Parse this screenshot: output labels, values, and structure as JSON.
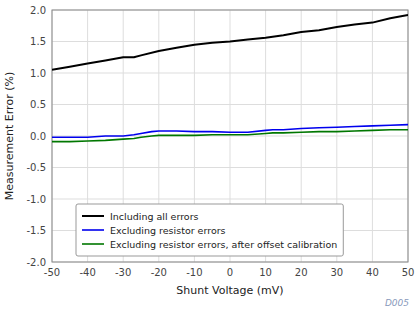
{
  "chart_data": {
    "type": "line",
    "x_label": "Shunt Voltage (mV)",
    "y_label": "Measurement Error (%)",
    "xlim": [
      -50,
      50
    ],
    "ylim": [
      -2,
      2
    ],
    "xticks": [
      -50,
      -40,
      -30,
      -20,
      -10,
      0,
      10,
      20,
      30,
      40,
      50
    ],
    "yticks": [
      {
        "value": -2,
        "label": "-2.0"
      },
      {
        "value": -1.5,
        "label": "-1.5"
      },
      {
        "value": -1,
        "label": "-1.0"
      },
      {
        "value": -0.5,
        "label": "-0.5"
      },
      {
        "value": 0,
        "label": "0.0"
      },
      {
        "value": 0.5,
        "label": "0.5"
      },
      {
        "value": 1,
        "label": "1.0"
      },
      {
        "value": 1.5,
        "label": "1.5"
      },
      {
        "value": 2,
        "label": "2.0"
      }
    ],
    "grid": true,
    "legend": "lower left",
    "annotations": [
      "D005"
    ],
    "series": [
      {
        "name": "Including all errors",
        "color": "#000000",
        "x": [
          -50,
          -45,
          -40,
          -35,
          -30,
          -27,
          -25,
          -20,
          -15,
          -10,
          -5,
          0,
          5,
          10,
          15,
          20,
          25,
          30,
          35,
          40,
          45,
          50
        ],
        "values": [
          1.05,
          1.1,
          1.15,
          1.2,
          1.25,
          1.25,
          1.28,
          1.35,
          1.4,
          1.45,
          1.48,
          1.5,
          1.53,
          1.56,
          1.6,
          1.65,
          1.68,
          1.73,
          1.77,
          1.8,
          1.87,
          1.92
        ]
      },
      {
        "name": "Excluding resistor errors",
        "color": "#0000ee",
        "x": [
          -50,
          -45,
          -40,
          -35,
          -30,
          -27,
          -25,
          -22,
          -20,
          -15,
          -10,
          -5,
          0,
          5,
          10,
          12,
          15,
          20,
          25,
          30,
          35,
          40,
          45,
          50
        ],
        "values": [
          -0.02,
          -0.02,
          -0.02,
          -0.0,
          0.0,
          0.02,
          0.04,
          0.07,
          0.08,
          0.08,
          0.07,
          0.07,
          0.06,
          0.06,
          0.09,
          0.1,
          0.1,
          0.12,
          0.13,
          0.14,
          0.15,
          0.16,
          0.17,
          0.18
        ]
      },
      {
        "name": "Excluding resistor errors, after offset calibration",
        "color": "#007700",
        "x": [
          -50,
          -45,
          -40,
          -35,
          -30,
          -27,
          -25,
          -22,
          -20,
          -15,
          -10,
          -5,
          0,
          5,
          10,
          12,
          15,
          20,
          25,
          30,
          35,
          40,
          45,
          50
        ],
        "values": [
          -0.09,
          -0.09,
          -0.08,
          -0.07,
          -0.05,
          -0.04,
          -0.02,
          0.0,
          0.01,
          0.01,
          0.01,
          0.02,
          0.02,
          0.02,
          0.04,
          0.05,
          0.05,
          0.06,
          0.07,
          0.07,
          0.08,
          0.09,
          0.1,
          0.1
        ]
      }
    ]
  }
}
